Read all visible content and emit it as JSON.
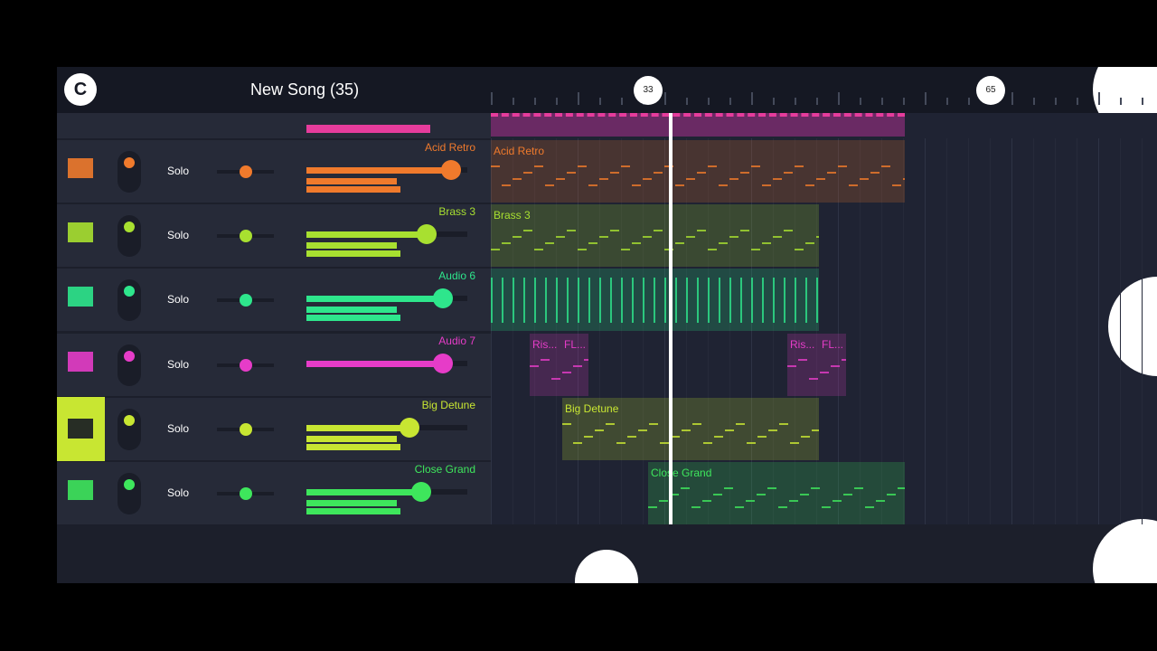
{
  "header": {
    "title": "New Song (35)"
  },
  "ruler": {
    "markers": [
      "33",
      "65"
    ]
  },
  "tracks": [
    {
      "name": "Acid Retro",
      "solo": "Solo",
      "color": "#f07a2c",
      "clips": [
        {
          "labels": [
            "Acid Retro"
          ]
        }
      ]
    },
    {
      "name": "Brass 3",
      "solo": "Solo",
      "color": "#a8e030",
      "clips": [
        {
          "labels": [
            "Brass 3"
          ]
        }
      ]
    },
    {
      "name": "Audio 6",
      "solo": "Solo",
      "color": "#2ee68c",
      "clips": [
        {
          "labels": []
        }
      ]
    },
    {
      "name": "Audio 7",
      "solo": "Solo",
      "color": "#e63cc8",
      "clips": [
        {
          "labels": [
            "Ris...",
            "FL..."
          ]
        },
        {
          "labels": [
            "Ris...",
            "FL..."
          ]
        }
      ]
    },
    {
      "name": "Big Detune",
      "solo": "Solo",
      "color": "#c8e632",
      "clips": [
        {
          "labels": [
            "Big Detune"
          ]
        }
      ]
    },
    {
      "name": "Close Grand",
      "solo": "Solo",
      "color": "#3ee65c",
      "clips": [
        {
          "labels": [
            "Close Grand"
          ]
        }
      ]
    }
  ]
}
